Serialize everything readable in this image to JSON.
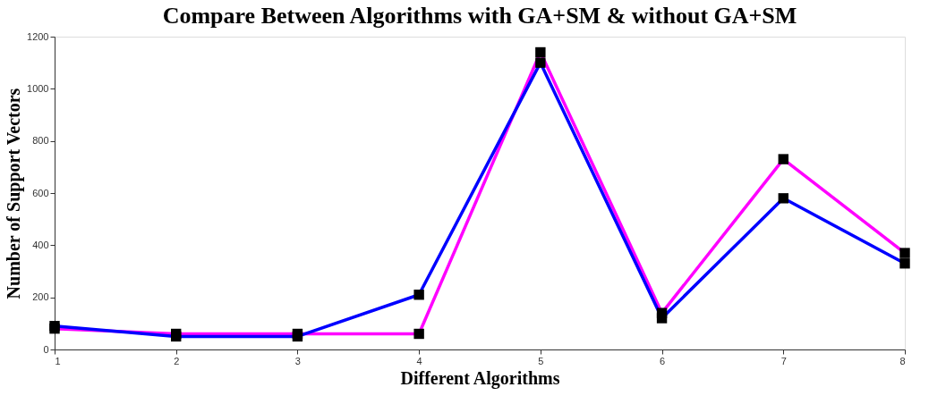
{
  "chart_data": {
    "type": "line",
    "title": "Compare Between Algorithms with GA+SM & without GA+SM",
    "xlabel": "Different Algorithms",
    "ylabel": "Number of Support Vectors",
    "x": [
      1,
      2,
      3,
      4,
      5,
      6,
      7,
      8
    ],
    "series": [
      {
        "color": "#ff00ff",
        "values": [
          80,
          60,
          60,
          60,
          1140,
          140,
          730,
          370
        ]
      },
      {
        "color": "#0000ff",
        "values": [
          90,
          50,
          50,
          210,
          1100,
          120,
          580,
          330
        ]
      }
    ],
    "xlim": [
      1,
      8
    ],
    "xticks": [
      1,
      2,
      3,
      4,
      5,
      6,
      7,
      8
    ],
    "ylim": [
      0,
      1200
    ],
    "yticks": [
      0,
      200,
      400,
      600,
      800,
      1000,
      1200
    ],
    "marker": "square",
    "line_style": "solid",
    "grid": false,
    "legend": false
  }
}
